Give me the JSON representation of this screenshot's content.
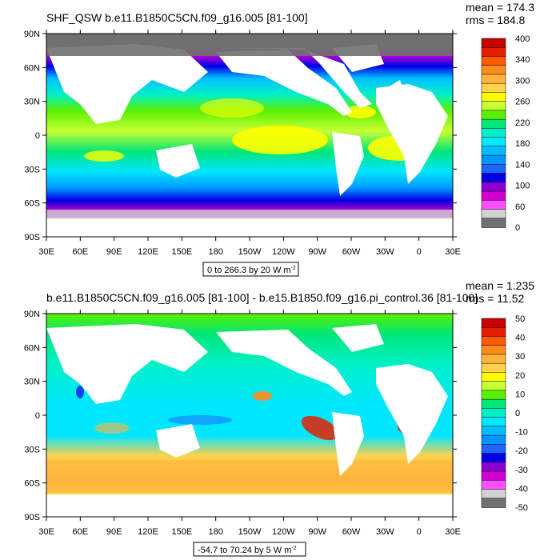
{
  "colors": {
    "ocean_top": "#3ee0c8",
    "ocean_bottom": "#46e6f0",
    "land": "#ffffff",
    "frame": "#000000"
  },
  "panels": [
    {
      "title": "SHF_QSW b.e11.B1850C5CN.f09_g16.005 [81-100]",
      "mean_text": "mean = 174.3",
      "rms_text": "rms = 184.8",
      "range_text": "0 to 266.3 by 20  W m",
      "range_exp": "-2",
      "lat_labels": [
        "90N",
        "60N",
        "30N",
        "0",
        "30S",
        "60S",
        "90S"
      ],
      "lon_labels": [
        "30E",
        "60E",
        "90E",
        "120E",
        "150E",
        "180",
        "150W",
        "120W",
        "90W",
        "60W",
        "30W",
        "0",
        "30E"
      ],
      "colorbar": {
        "labels": [
          "400",
          "340",
          "300",
          "260",
          "220",
          "180",
          "140",
          "100",
          "60",
          "0"
        ],
        "colors": [
          "#c80000",
          "#e81e00",
          "#ff5a00",
          "#ff8c1e",
          "#ffb43c",
          "#ffd24b",
          "#ffff00",
          "#c8ff32",
          "#5af000",
          "#00e678",
          "#00f0c8",
          "#00e6ff",
          "#00beff",
          "#0096ff",
          "#1e64ff",
          "#0000e6",
          "#8c00d2",
          "#d200d2",
          "#ff50ff",
          "#d2d2d2",
          "#707070"
        ]
      }
    },
    {
      "title": "b.e11.B1850C5CN.f09_g16.005 [81-100] - b.e15.B1850.f09_g16.pi_control.36 [81-100]",
      "mean_text": "mean = 1.235",
      "rms_text": "rms = 11.52",
      "range_text": "-54.7 to 70.24 by 5  W m",
      "range_exp": "-2",
      "lat_labels": [
        "90N",
        "60N",
        "30N",
        "0",
        "30S",
        "60S",
        "90S"
      ],
      "lon_labels": [
        "30E",
        "60E",
        "90E",
        "120E",
        "150E",
        "180",
        "150W",
        "120W",
        "90W",
        "60W",
        "30W",
        "0",
        "30E"
      ],
      "colorbar": {
        "labels": [
          "50",
          "40",
          "30",
          "20",
          "10",
          "0",
          "-10",
          "-20",
          "-30",
          "-40",
          "-50"
        ],
        "colors": [
          "#c80000",
          "#e81e00",
          "#ff5a00",
          "#ff8c1e",
          "#ffb43c",
          "#ffd24b",
          "#ffff00",
          "#c8ff32",
          "#5af000",
          "#00e678",
          "#00f0c8",
          "#00e6ff",
          "#00beff",
          "#0096ff",
          "#1e64ff",
          "#0000e6",
          "#8c00d2",
          "#d200d2",
          "#ff50ff",
          "#d2d2d2",
          "#707070"
        ]
      }
    }
  ]
}
